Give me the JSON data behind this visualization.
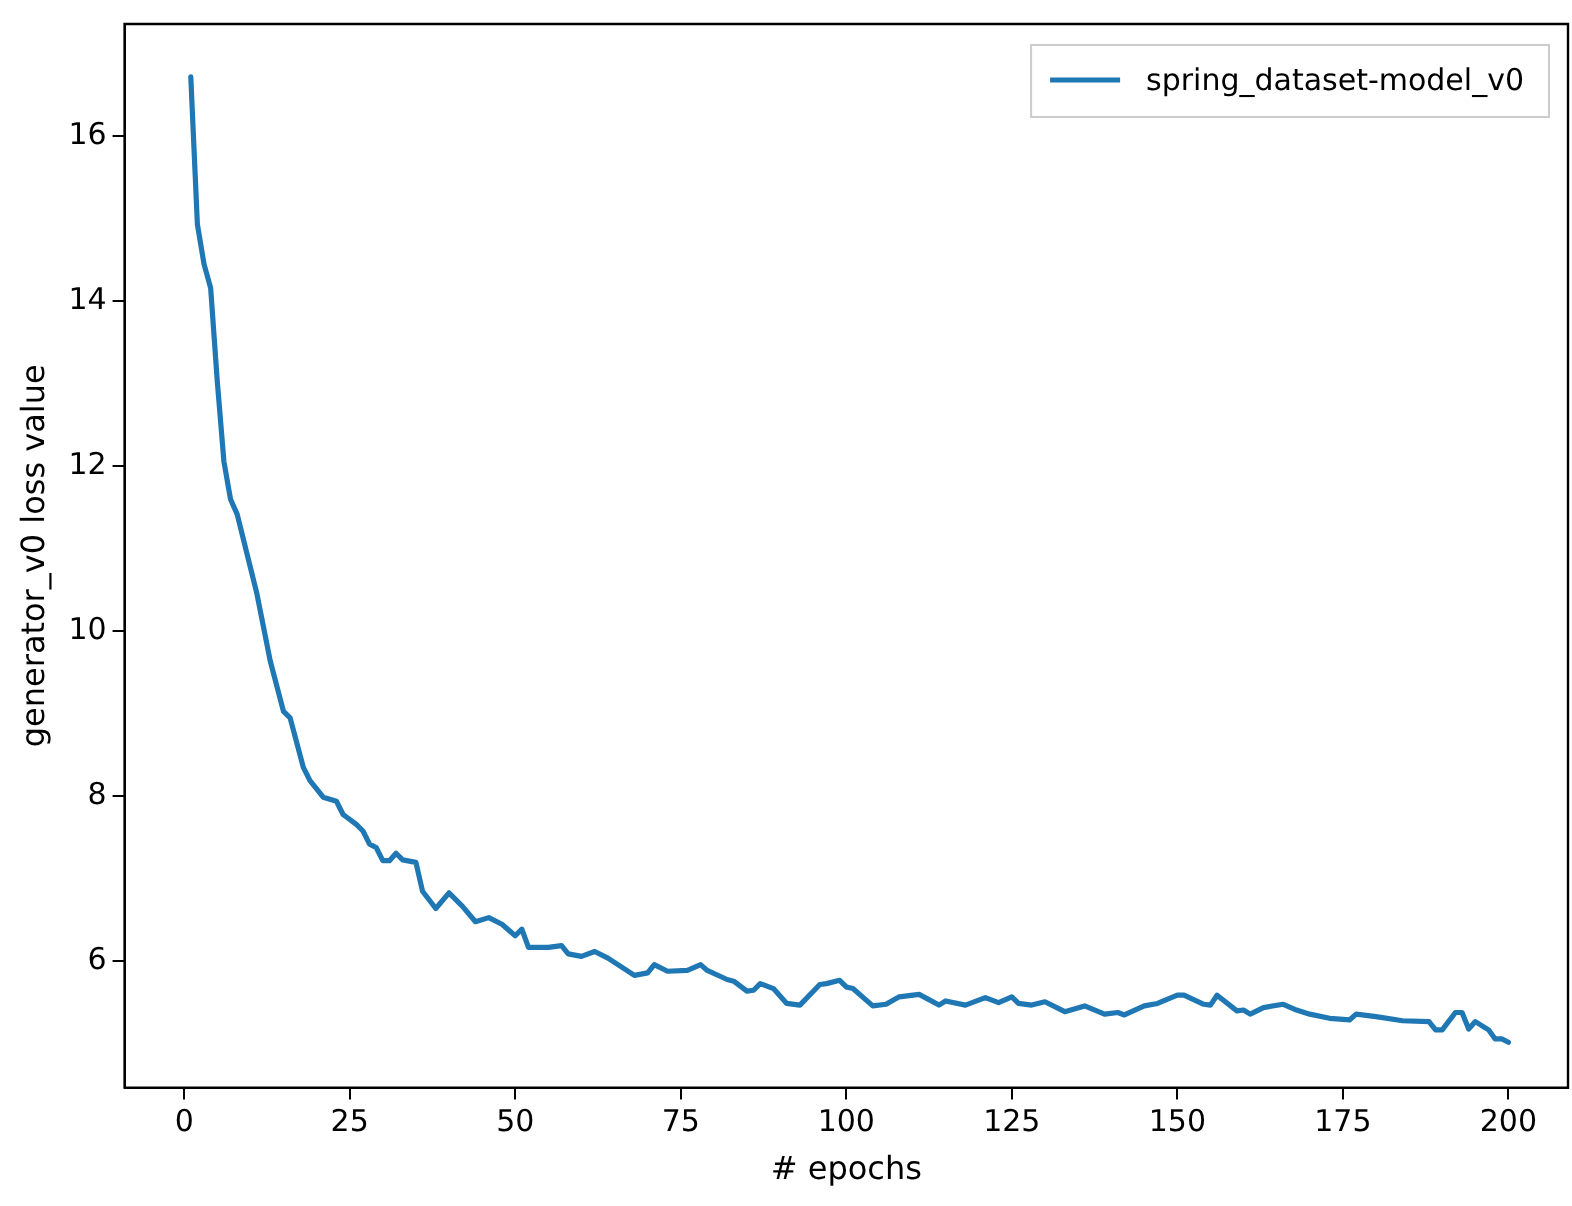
{
  "chart_data": {
    "type": "line",
    "xlabel": "# epochs",
    "ylabel": "generator_v0 loss value",
    "xlim": [
      -9,
      209
    ],
    "ylim": [
      4.47,
      17.36
    ],
    "xticks": [
      0,
      25,
      50,
      75,
      100,
      125,
      150,
      175,
      200
    ],
    "yticks": [
      6,
      8,
      10,
      12,
      14,
      16
    ],
    "grid": false,
    "legend": "top right",
    "marker": "none",
    "line_style": "solid",
    "series": [
      {
        "name": "spring_dataset-model_v0",
        "color": "#1f77b4",
        "x": [
          1,
          2,
          3,
          4,
          5,
          6,
          7,
          8,
          11,
          13,
          15,
          16,
          18,
          19,
          21,
          23,
          24,
          26,
          27,
          28,
          29,
          30,
          31,
          32,
          33,
          35,
          36,
          38,
          40,
          42,
          44,
          46,
          48,
          50,
          51,
          52,
          55,
          57,
          58,
          60,
          62,
          64,
          68,
          70,
          71,
          73,
          76,
          78,
          79,
          82,
          83,
          85,
          86,
          87,
          89,
          91,
          93,
          96,
          97,
          99,
          100,
          101,
          104,
          106,
          108,
          111,
          114,
          115,
          118,
          121,
          123,
          125,
          126,
          128,
          130,
          133,
          136,
          139,
          141,
          142,
          145,
          147,
          150,
          151,
          154,
          155,
          156,
          159,
          160,
          161,
          163,
          166,
          168,
          170,
          173,
          176,
          177,
          180,
          184,
          188,
          189,
          190,
          192,
          193,
          194,
          195,
          197,
          198,
          199,
          200
        ],
        "values": [
          16.72,
          14.93,
          14.45,
          14.16,
          13.03,
          12.06,
          11.6,
          11.42,
          10.45,
          9.64,
          9.03,
          8.95,
          8.35,
          8.19,
          7.99,
          7.94,
          7.78,
          7.66,
          7.58,
          7.42,
          7.38,
          7.22,
          7.22,
          7.31,
          7.23,
          7.2,
          6.85,
          6.64,
          6.83,
          6.67,
          6.48,
          6.53,
          6.45,
          6.31,
          6.39,
          6.17,
          6.17,
          6.19,
          6.09,
          6.06,
          6.12,
          6.04,
          5.83,
          5.86,
          5.96,
          5.88,
          5.89,
          5.96,
          5.89,
          5.78,
          5.76,
          5.64,
          5.65,
          5.73,
          5.67,
          5.49,
          5.47,
          5.72,
          5.73,
          5.77,
          5.69,
          5.67,
          5.46,
          5.48,
          5.57,
          5.6,
          5.47,
          5.52,
          5.47,
          5.56,
          5.5,
          5.57,
          5.49,
          5.47,
          5.51,
          5.39,
          5.46,
          5.36,
          5.38,
          5.35,
          5.46,
          5.49,
          5.59,
          5.59,
          5.48,
          5.47,
          5.59,
          5.4,
          5.41,
          5.36,
          5.44,
          5.48,
          5.41,
          5.36,
          5.31,
          5.29,
          5.36,
          5.33,
          5.28,
          5.27,
          5.17,
          5.17,
          5.38,
          5.38,
          5.18,
          5.27,
          5.17,
          5.06,
          5.06,
          5.02
        ]
      }
    ]
  }
}
